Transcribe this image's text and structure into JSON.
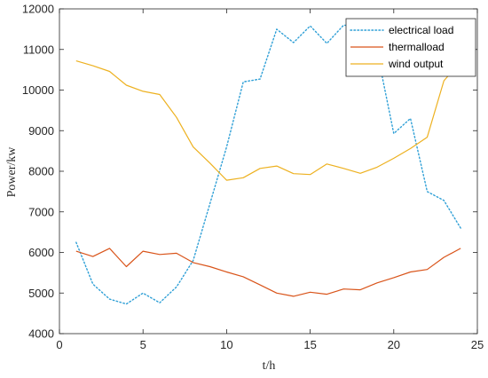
{
  "chart_data": {
    "type": "line",
    "xlabel": "t/h",
    "ylabel": "Power/kw",
    "xlim": [
      0,
      25
    ],
    "ylim": [
      4000,
      12000
    ],
    "xticks": [
      0,
      5,
      10,
      15,
      20,
      25
    ],
    "yticks": [
      4000,
      5000,
      6000,
      7000,
      8000,
      9000,
      10000,
      11000,
      12000
    ],
    "grid": false,
    "legend_position": "top-right",
    "x": [
      1,
      2,
      3,
      4,
      5,
      6,
      7,
      8,
      9,
      10,
      11,
      12,
      13,
      14,
      15,
      16,
      17,
      18,
      19,
      20,
      21,
      22,
      23,
      24
    ],
    "series": [
      {
        "name": "electrical load",
        "color": "#2e9fd6",
        "style": "dotted",
        "values": [
          6250,
          5220,
          4850,
          4730,
          5000,
          4760,
          5150,
          5800,
          7200,
          8600,
          10200,
          10270,
          11500,
          11170,
          11580,
          11150,
          11600,
          11570,
          10950,
          8930,
          9300,
          7500,
          7280,
          6600
        ]
      },
      {
        "name": "thermalload",
        "color": "#d9541a",
        "style": "solid",
        "values": [
          6030,
          5900,
          6100,
          5650,
          6030,
          5950,
          5980,
          5750,
          5650,
          5520,
          5400,
          5200,
          5000,
          4920,
          5020,
          4970,
          5100,
          5080,
          5250,
          5380,
          5520,
          5580,
          5880,
          6100
        ]
      },
      {
        "name": "wind output",
        "color": "#edb120",
        "style": "solid",
        "values": [
          10720,
          10600,
          10460,
          10120,
          9970,
          9890,
          9330,
          8600,
          8200,
          7780,
          7840,
          8070,
          8130,
          7940,
          7920,
          8180,
          8070,
          7950,
          8100,
          8320,
          8560,
          8840,
          10230,
          10700
        ]
      }
    ]
  }
}
